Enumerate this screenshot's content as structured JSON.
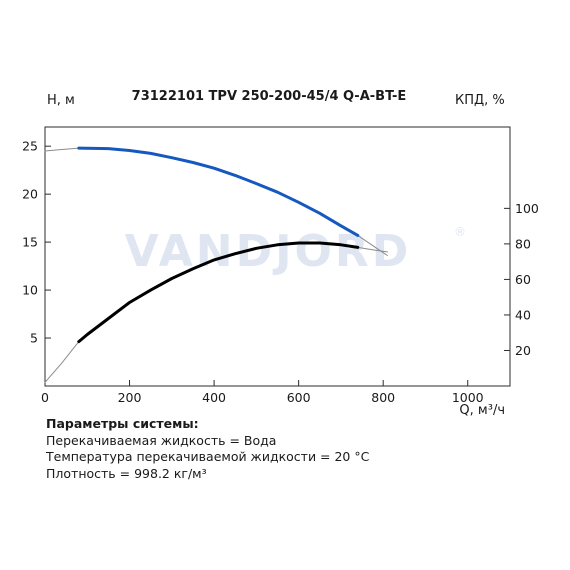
{
  "chart_data": {
    "type": "line",
    "title": "73122101 TPV 250-200-45/4 Q-A-BT-E",
    "ylabel_left": "H, м",
    "ylabel_right": "КПД, %",
    "xlabel": "Q, м³/ч",
    "watermark": "VANDJORD",
    "watermark_mark": "®",
    "xlim": [
      0,
      1100
    ],
    "ylim_left": [
      0,
      27
    ],
    "ylim_right": [
      0,
      145.8
    ],
    "x_ticks": [
      "0",
      "200",
      "400",
      "600",
      "800",
      "1000"
    ],
    "y_ticks_left": [
      "5",
      "10",
      "15",
      "20",
      "25"
    ],
    "y_ticks_right": [
      "20",
      "40",
      "60",
      "80",
      "100"
    ],
    "grid": false,
    "colors": {
      "head": "#1558c0",
      "efficiency": "#000000",
      "extension": "#8c8c8c"
    },
    "series": [
      {
        "key": "head",
        "operating": {
          "x": [
            80,
            150,
            200,
            250,
            300,
            350,
            400,
            450,
            500,
            550,
            600,
            650,
            700,
            740
          ],
          "y": [
            24.8,
            24.75,
            24.55,
            24.25,
            23.8,
            23.3,
            22.7,
            21.95,
            21.1,
            20.2,
            19.15,
            18.0,
            16.7,
            15.7
          ]
        },
        "extension_low": {
          "x": [
            0,
            40,
            80
          ],
          "y": [
            24.5,
            24.65,
            24.8
          ]
        },
        "extension_high": {
          "x": [
            740,
            780,
            810
          ],
          "y": [
            15.7,
            14.5,
            13.6
          ]
        }
      },
      {
        "key": "efficiency",
        "operating": {
          "x": [
            80,
            100,
            150,
            200,
            250,
            300,
            350,
            400,
            450,
            500,
            550,
            600,
            650,
            700,
            740
          ],
          "y": [
            25,
            29,
            38,
            47,
            54,
            60.5,
            66,
            71,
            74.5,
            77.5,
            79.5,
            80.5,
            80.5,
            79.5,
            78
          ]
        },
        "extension_low": {
          "x": [
            0,
            40,
            80
          ],
          "y": [
            2,
            13,
            25
          ]
        },
        "extension_high": {
          "x": [
            740,
            780,
            810
          ],
          "y": [
            78,
            76.5,
            75.5
          ]
        }
      }
    ]
  },
  "parameters": {
    "title": "Параметры системы:",
    "liquid": "Перекачиваемая жидкость = Вода",
    "temperature": "Температура перекачиваемой жидкости = 20 °C",
    "density": "Плотность = 998.2 кг/м³"
  }
}
